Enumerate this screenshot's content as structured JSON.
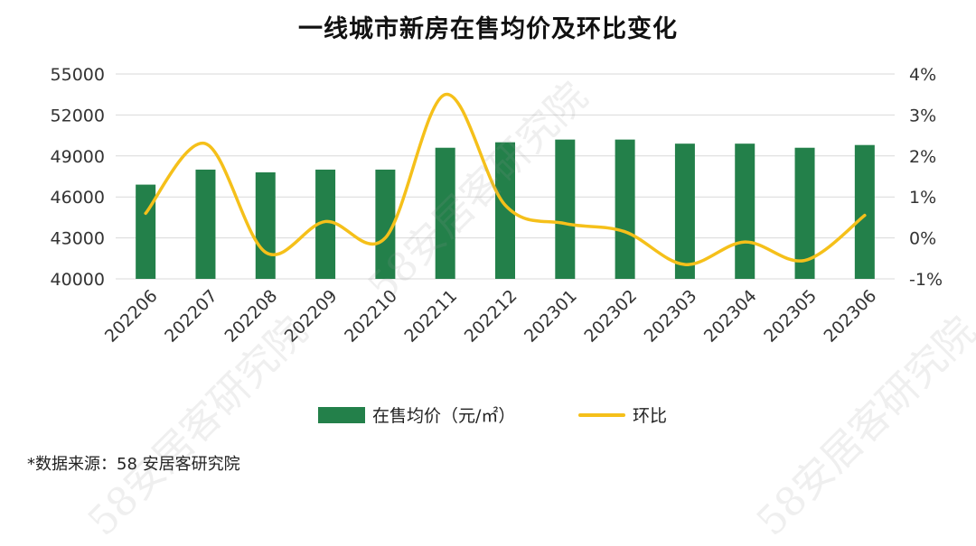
{
  "title": "一线城市新房在售均价及环比变化",
  "source": "*数据来源：58 安居客研究院",
  "watermark": "58安居客研究院",
  "colors": {
    "bar": "#23804A",
    "line": "#F5C01A",
    "grid": "#d9d9d9"
  },
  "chart_data": {
    "type": "bar",
    "title": "一线城市新房在售均价及环比变化",
    "categories": [
      "202206",
      "202207",
      "202208",
      "202209",
      "202210",
      "202211",
      "202212",
      "202301",
      "202302",
      "202303",
      "202304",
      "202305",
      "202306"
    ],
    "series": [
      {
        "name": "在售均价（元/㎡）",
        "type": "bar",
        "axis": "left",
        "values": [
          46900,
          48000,
          47800,
          48000,
          48000,
          49600,
          50000,
          50200,
          50200,
          49900,
          49900,
          49600,
          49800
        ]
      },
      {
        "name": "环比",
        "type": "line",
        "axis": "right",
        "smooth": true,
        "values": [
          0.6,
          2.3,
          -0.35,
          0.4,
          0.0,
          3.5,
          0.8,
          0.35,
          0.15,
          -0.65,
          -0.1,
          -0.55,
          0.55
        ]
      }
    ],
    "y_left": {
      "ylim": [
        40000,
        55000
      ],
      "ticks": [
        "40000",
        "43000",
        "46000",
        "49000",
        "52000",
        "55000"
      ]
    },
    "y_right": {
      "ylim": [
        -1,
        4
      ],
      "ticks": [
        "-1%",
        "0%",
        "1%",
        "2%",
        "3%",
        "4%"
      ]
    },
    "grid": true,
    "legend": {
      "position": "bottom",
      "items": [
        "在售均价（元/㎡）",
        "环比"
      ]
    }
  }
}
